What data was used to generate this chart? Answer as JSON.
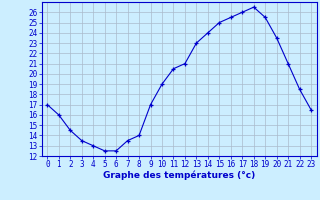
{
  "hours": [
    0,
    1,
    2,
    3,
    4,
    5,
    6,
    7,
    8,
    9,
    10,
    11,
    12,
    13,
    14,
    15,
    16,
    17,
    18,
    19,
    20,
    21,
    22,
    23
  ],
  "temps": [
    17.0,
    16.0,
    14.5,
    13.5,
    13.0,
    12.5,
    12.5,
    13.5,
    14.0,
    17.0,
    19.0,
    20.5,
    21.0,
    23.0,
    24.0,
    25.0,
    25.5,
    26.0,
    26.5,
    25.5,
    23.5,
    21.0,
    18.5,
    16.5
  ],
  "xlabel": "Graphe des températures (°c)",
  "ylim": [
    12,
    27
  ],
  "xlim_min": -0.5,
  "xlim_max": 23.5,
  "yticks": [
    12,
    13,
    14,
    15,
    16,
    17,
    18,
    19,
    20,
    21,
    22,
    23,
    24,
    25,
    26
  ],
  "xticks": [
    0,
    1,
    2,
    3,
    4,
    5,
    6,
    7,
    8,
    9,
    10,
    11,
    12,
    13,
    14,
    15,
    16,
    17,
    18,
    19,
    20,
    21,
    22,
    23
  ],
  "line_color": "#0000cc",
  "marker": "+",
  "bg_color": "#cceeff",
  "grid_color": "#aabbcc",
  "tick_label_color": "#0000cc",
  "xlabel_color": "#0000cc",
  "tick_fontsize": 5.5,
  "xlabel_fontsize": 6.5
}
